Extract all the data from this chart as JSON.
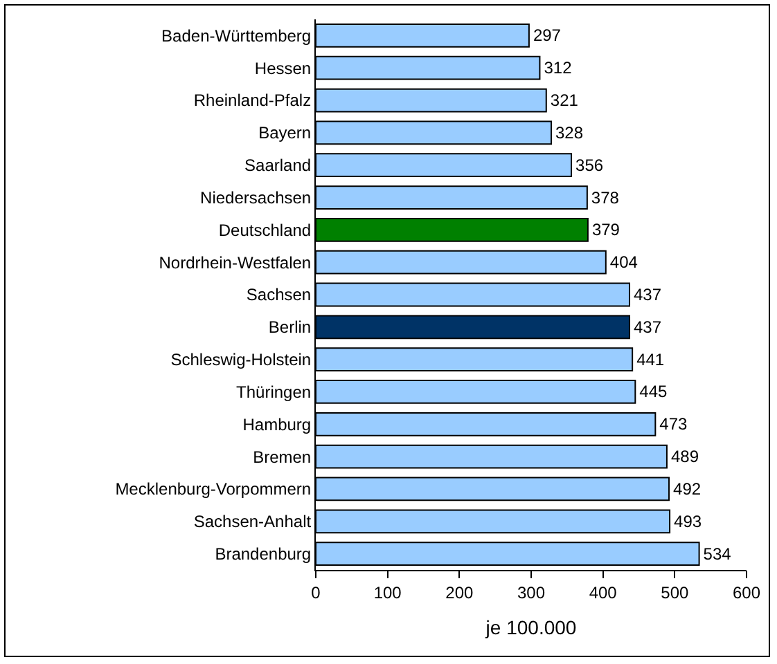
{
  "chart_data": {
    "type": "bar",
    "orientation": "horizontal",
    "xlabel": "je 100.000",
    "categories": [
      "Baden-Württemberg",
      "Hessen",
      "Rheinland-Pfalz",
      "Bayern",
      "Saarland",
      "Niedersachsen",
      "Deutschland",
      "Nordrhein-Westfalen",
      "Sachsen",
      "Berlin",
      "Schleswig-Holstein",
      "Thüringen",
      "Hamburg",
      "Bremen",
      "Mecklenburg-Vorpommern",
      "Sachsen-Anhalt",
      "Brandenburg"
    ],
    "values": [
      297,
      312,
      321,
      328,
      356,
      378,
      379,
      404,
      437,
      437,
      441,
      445,
      473,
      489,
      492,
      493,
      534
    ],
    "colors": [
      "#99ccff",
      "#99ccff",
      "#99ccff",
      "#99ccff",
      "#99ccff",
      "#99ccff",
      "#008000",
      "#99ccff",
      "#99ccff",
      "#003366",
      "#99ccff",
      "#99ccff",
      "#99ccff",
      "#99ccff",
      "#99ccff",
      "#99ccff",
      "#99ccff"
    ],
    "xlim": [
      0,
      600
    ],
    "xticks": [
      0,
      100,
      200,
      300,
      400,
      500,
      600
    ],
    "data_labels": true,
    "grid": false,
    "legend": false
  }
}
